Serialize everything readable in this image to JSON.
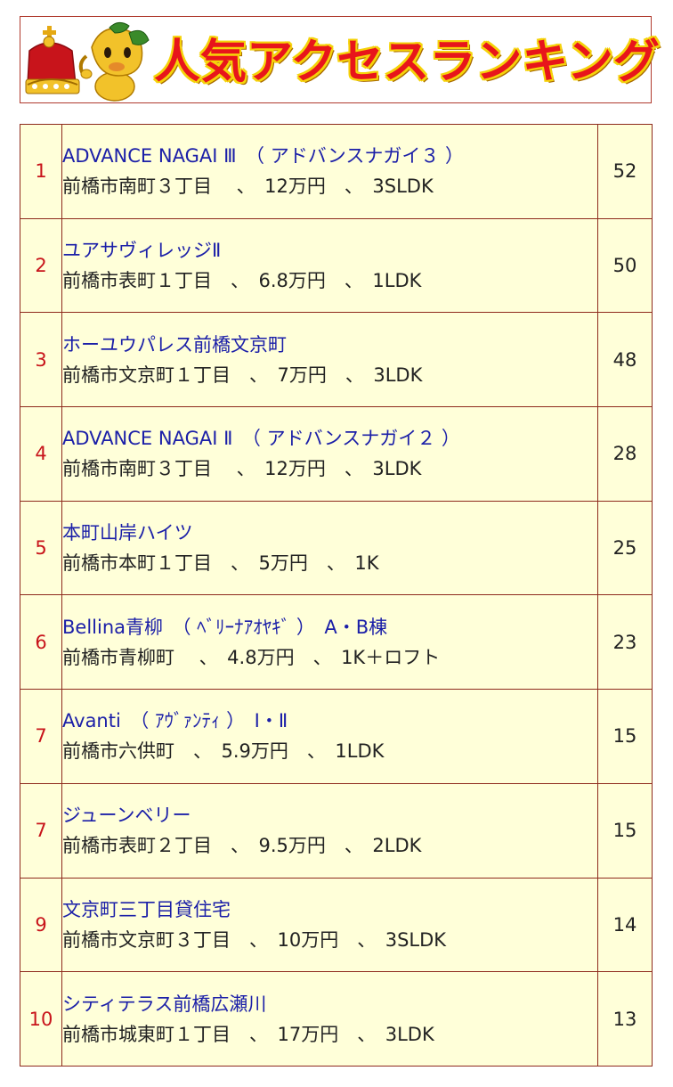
{
  "header": {
    "title": "人気アクセスランキング"
  },
  "ranking": [
    {
      "rank": "1",
      "name": "ADVANCE NAGAI Ⅲ　（ アドバンスナガイ３ ）",
      "detail": "前橋市南町３丁目　 、　12万円　、　3SLDK",
      "count": "52"
    },
    {
      "rank": "2",
      "name": "ユアサヴィレッジⅡ",
      "detail": "前橋市表町１丁目　、　6.8万円　、　1LDK",
      "count": "50"
    },
    {
      "rank": "3",
      "name": "ホーユウパレス前橋文京町",
      "detail": "前橋市文京町１丁目　、　7万円　、　3LDK",
      "count": "48"
    },
    {
      "rank": "4",
      "name": "ADVANCE NAGAI Ⅱ　（ アドバンスナガイ２ ）",
      "detail": "前橋市南町３丁目　 、　12万円　、　3LDK",
      "count": "28"
    },
    {
      "rank": "5",
      "name": "本町山岸ハイツ",
      "detail": "前橋市本町１丁目　、　5万円　、　1K",
      "count": "25"
    },
    {
      "rank": "6",
      "name": "Bellina青柳　（ ﾍﾞﾘｰﾅｱｵﾔｷﾞ ）　A・B棟",
      "detail": "前橋市青柳町　 、　4.8万円　、　1K＋ロフト",
      "count": "23"
    },
    {
      "rank": "7",
      "name": "Avanti　（ ｱｳﾞｧﾝﾃｨ ）　Ⅰ・Ⅱ",
      "detail": "前橋市六供町　、　5.9万円　、　1LDK",
      "count": "15"
    },
    {
      "rank": "7",
      "name": "ジューンベリー",
      "detail": "前橋市表町２丁目　、　9.5万円　、　2LDK",
      "count": "15"
    },
    {
      "rank": "9",
      "name": "文京町三丁目貸住宅",
      "detail": "前橋市文京町３丁目　、　10万円　、　3SLDK",
      "count": "14"
    },
    {
      "rank": "10",
      "name": "シティテラス前橋広瀬川",
      "detail": "前橋市城東町１丁目　、　17万円　、　3LDK",
      "count": "13"
    }
  ]
}
